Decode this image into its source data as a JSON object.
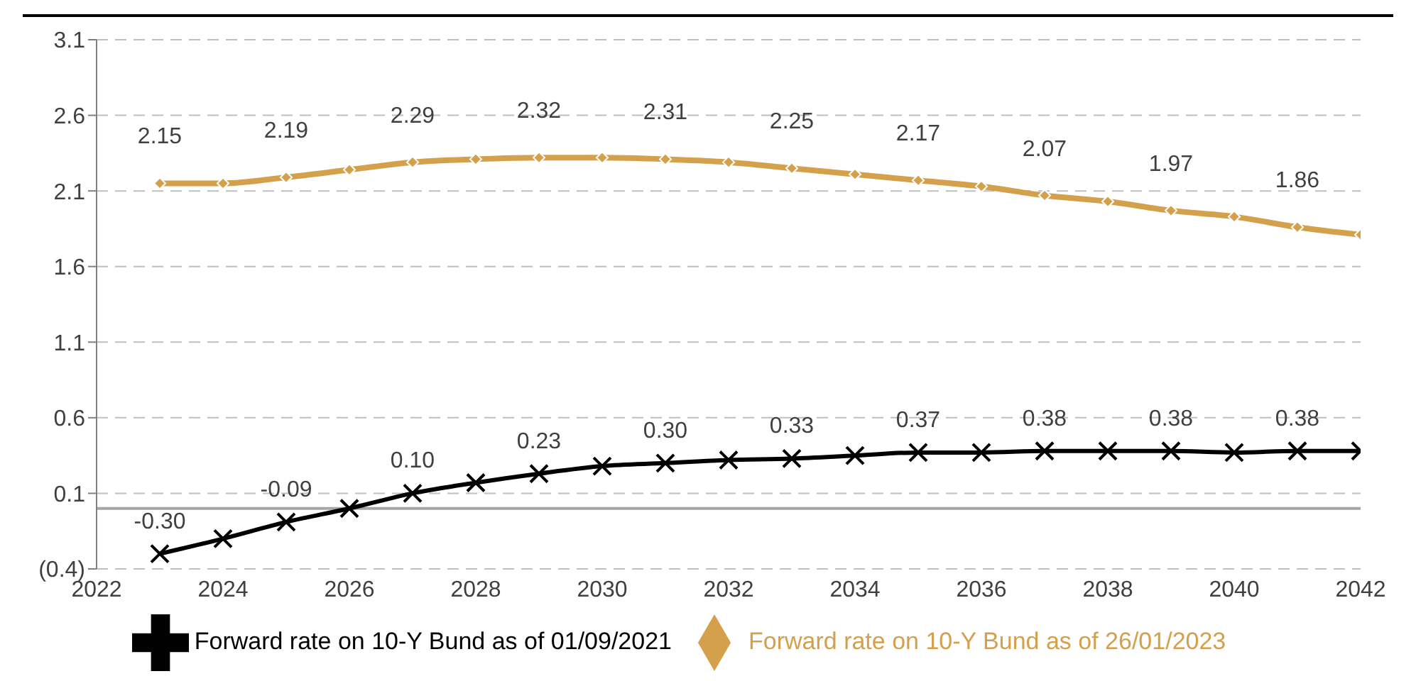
{
  "chart_data": {
    "type": "line",
    "x": [
      2023,
      2024,
      2025,
      2026,
      2027,
      2028,
      2029,
      2030,
      2031,
      2032,
      2033,
      2034,
      2035,
      2036,
      2037,
      2038,
      2039,
      2040,
      2041,
      2042
    ],
    "series": [
      {
        "name": "Forward rate on 10-Y Bund as of 26/01/2023",
        "color": "#d4a04c",
        "marker": "diamond",
        "values": [
          2.15,
          2.15,
          2.19,
          2.24,
          2.29,
          2.31,
          2.32,
          2.32,
          2.31,
          2.29,
          2.25,
          2.21,
          2.17,
          2.13,
          2.07,
          2.03,
          1.97,
          1.93,
          1.86,
          1.81
        ],
        "value_labels": [
          "2.15",
          null,
          "2.19",
          null,
          "2.29",
          null,
          "2.32",
          null,
          "2.31",
          null,
          "2.25",
          null,
          "2.17",
          null,
          "2.07",
          null,
          "1.97",
          null,
          "1.86",
          null
        ]
      },
      {
        "name": "Forward rate on 10-Y Bund as of 01/09/2021",
        "color": "#000000",
        "marker": "cross",
        "values": [
          -0.3,
          -0.2,
          -0.09,
          0.0,
          0.1,
          0.17,
          0.23,
          0.28,
          0.3,
          0.32,
          0.33,
          0.35,
          0.37,
          0.37,
          0.38,
          0.38,
          0.38,
          0.37,
          0.38,
          0.38
        ],
        "value_labels": [
          "-0.30",
          null,
          "-0.09",
          null,
          "0.10",
          null,
          "0.23",
          null,
          "0.30",
          null,
          "0.33",
          null,
          "0.37",
          null,
          "0.38",
          null,
          "0.38",
          null,
          "0.38",
          null
        ]
      }
    ],
    "xlim": [
      2022,
      2042
    ],
    "xticks": [
      2022,
      2024,
      2026,
      2028,
      2030,
      2032,
      2034,
      2036,
      2038,
      2040,
      2042
    ],
    "ylim": [
      -0.4,
      3.1
    ],
    "yticks": [
      {
        "value": -0.4,
        "label": "(0.4)"
      },
      0.1,
      0.6,
      1.1,
      1.6,
      2.1,
      2.6,
      3.1
    ],
    "ref_lines": [
      {
        "axis": "y",
        "value": 0,
        "color": "#a6a6a6"
      }
    ],
    "grid": "y",
    "legend": "bottom",
    "line_style": "solid"
  }
}
